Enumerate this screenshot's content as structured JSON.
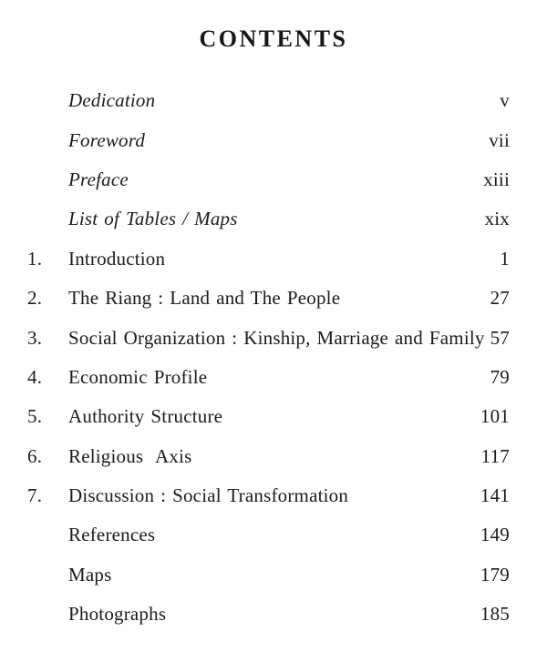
{
  "page": {
    "title": "CONTENTS"
  },
  "colors": {
    "text": "#1c1c1c",
    "background": "#fefefe"
  },
  "toc": {
    "rows": [
      {
        "number": "",
        "label": "Dedication",
        "page": "v",
        "style": "italic"
      },
      {
        "number": "",
        "label": "Foreword",
        "page": "vii",
        "style": "italic"
      },
      {
        "number": "",
        "label": "Preface",
        "page": "xiii",
        "style": "italic"
      },
      {
        "number": "",
        "label": "List of Tables / Maps",
        "page": "xix",
        "style": "italic"
      },
      {
        "number": "1.",
        "label": "Introduction",
        "page": "1",
        "style": "roman"
      },
      {
        "number": "2.",
        "label": "The Riang : Land and The People",
        "page": "27",
        "style": "roman"
      },
      {
        "number": "3.",
        "label": "Social Organization : Kinship, Marriage and Family",
        "page": "57",
        "style": "roman"
      },
      {
        "number": "4.",
        "label": "Economic Profile",
        "page": "79",
        "style": "roman"
      },
      {
        "number": "5.",
        "label": "Authority Structure",
        "page": "101",
        "style": "roman"
      },
      {
        "number": "6.",
        "label": "Religious  Axis",
        "page": "117",
        "style": "roman"
      },
      {
        "number": "7.",
        "label": "Discussion : Social Transformation",
        "page": "141",
        "style": "roman"
      },
      {
        "number": "",
        "label": "References",
        "page": "149",
        "style": "roman"
      },
      {
        "number": "",
        "label": "Maps",
        "page": "179",
        "style": "roman"
      },
      {
        "number": "",
        "label": "Photographs",
        "page": "185",
        "style": "roman"
      }
    ]
  }
}
